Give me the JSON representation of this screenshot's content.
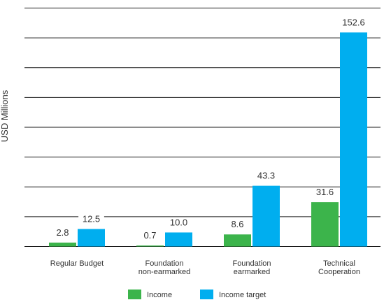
{
  "chart_data": {
    "type": "bar",
    "categories": [
      [
        "Regular Budget"
      ],
      [
        "Foundation",
        "non-earmarked"
      ],
      [
        "Foundation",
        "earmarked"
      ],
      [
        "Technical",
        "Cooperation"
      ]
    ],
    "series": [
      {
        "name": "Income",
        "values": [
          2.8,
          0.7,
          8.6,
          31.6
        ],
        "color": "#3cb44b"
      },
      {
        "name": "Income target",
        "values": [
          12.5,
          10.0,
          43.3,
          152.6
        ],
        "color": "#00aeef"
      }
    ],
    "ylabel": "USD Millions",
    "ylim": [
      0,
      170
    ],
    "grid": true,
    "legend_position": "bottom"
  }
}
